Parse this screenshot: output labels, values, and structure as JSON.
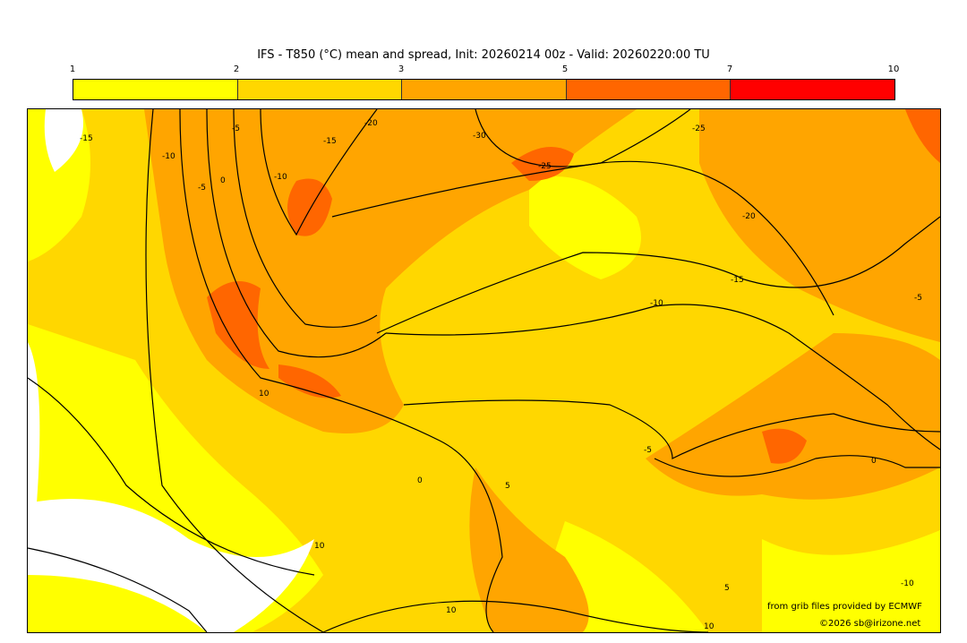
{
  "title": "IFS - T850 (°C) mean and spread, Init: 20260214 00z - Valid: 20260220:00 TU",
  "colorbar": {
    "ticks": [
      "1",
      "2",
      "3",
      "5",
      "7",
      "10"
    ],
    "colors": [
      "#ffff00",
      "#ffd700",
      "#ffa500",
      "#ff6600",
      "#ff0000"
    ]
  },
  "contour_labels": [
    "-15",
    "-10",
    "-5",
    "0",
    "-5",
    "-10",
    "-15",
    "-20",
    "-30",
    "-25",
    "-25",
    "-20",
    "-15",
    "-10",
    "-5",
    "0",
    "5",
    "10",
    "0",
    "-5",
    "10",
    "5",
    "-10",
    "10",
    "10"
  ],
  "credits": {
    "source": "from grib files provided by ECMWF",
    "copyright": "©2026 sb@irizone.net"
  }
}
